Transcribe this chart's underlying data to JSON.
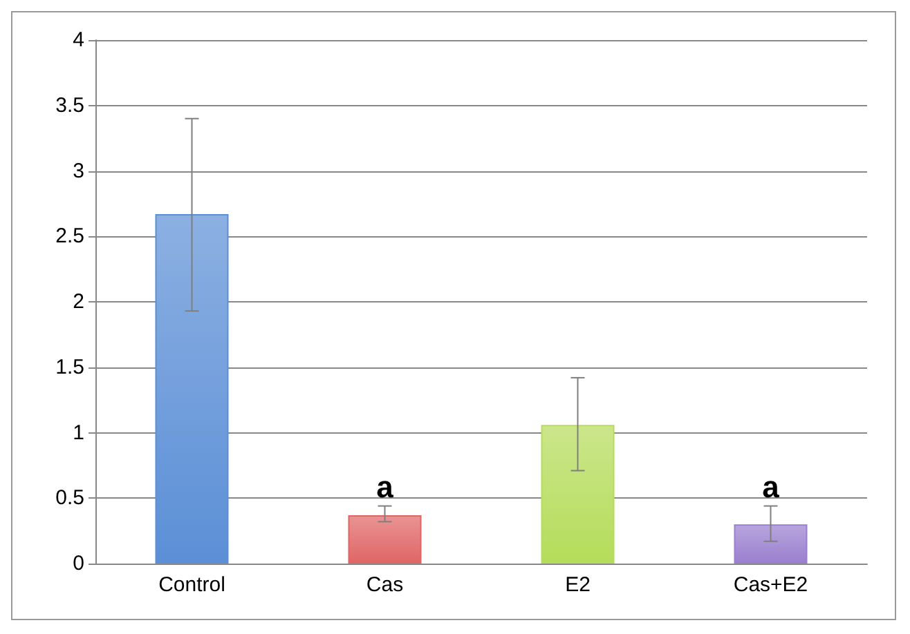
{
  "chart_data": {
    "type": "bar",
    "categories": [
      "Control",
      "Cas",
      "E2",
      "Cas+E2"
    ],
    "values": [
      2.67,
      0.37,
      1.06,
      0.3
    ],
    "colors": [
      "#5b8fd6",
      "#e06666",
      "#b5dc5a",
      "#9a7fcf"
    ],
    "errors": [
      [
        1.93,
        3.4
      ],
      [
        0.32,
        0.44
      ],
      [
        0.71,
        1.42
      ],
      [
        0.17,
        0.44
      ]
    ],
    "annotations": [
      {
        "text": "a",
        "x": "Cas",
        "y": 0.44
      },
      {
        "text": "a",
        "x": "Cas+E2",
        "y": 0.44
      }
    ],
    "ylim": [
      0,
      4
    ],
    "yticks": [
      0,
      0.5,
      1,
      1.5,
      2,
      2.5,
      3,
      3.5,
      4
    ],
    "grid": "y"
  }
}
